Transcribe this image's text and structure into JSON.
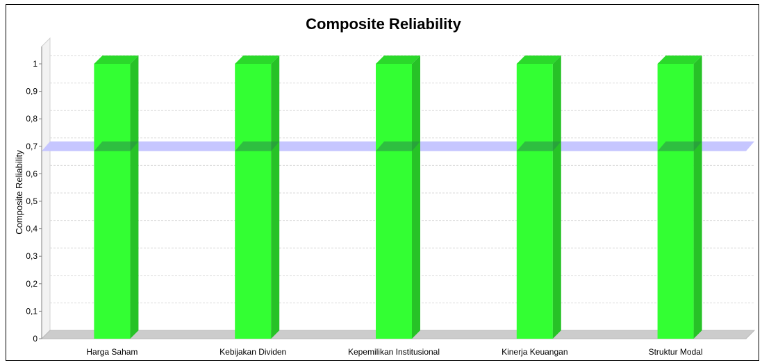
{
  "chart_data": {
    "type": "bar",
    "title": "Composite Reliability",
    "xlabel": "",
    "ylabel": "Composite Reliability",
    "categories": [
      "Harga Saham",
      "Kebijakan Dividen",
      "Kepemilikan Institusional",
      "Kinerja Keuangan",
      "Struktur Modal"
    ],
    "values": [
      1,
      1,
      1,
      1,
      1
    ],
    "ylim": [
      0,
      1
    ],
    "y_ticks": [
      "0",
      "0,1",
      "0,2",
      "0,3",
      "0,4",
      "0,5",
      "0,6",
      "0,7",
      "0,8",
      "0,9",
      "1"
    ],
    "threshold": 0.7,
    "grid": true,
    "colors": {
      "bar_front": "#33ff33",
      "bar_side": "#27c227",
      "bar_top": "#2bd92b",
      "threshold_band": "#c6c6ff",
      "floor": "#cccccc",
      "grid": "#d9d9d9"
    }
  }
}
